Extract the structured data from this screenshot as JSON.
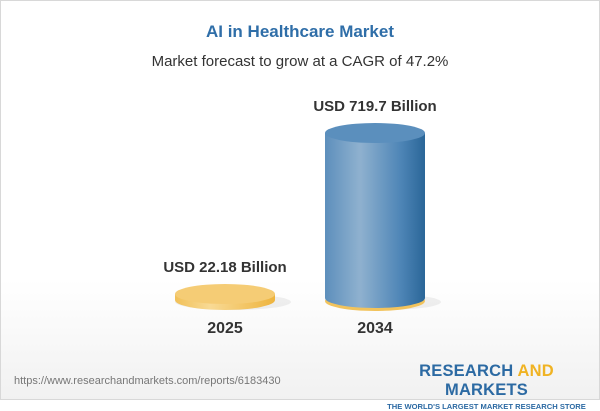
{
  "title": "AI in Healthcare Market",
  "subtitle": "Market forecast to grow at a CAGR of 47.2%",
  "chart_data": {
    "type": "bar",
    "style": "3d-cylinder",
    "categories": [
      "2025",
      "2034"
    ],
    "values": [
      22.18,
      719.7
    ],
    "data_labels": [
      "USD 22.18 Billion",
      "USD 719.7 Billion"
    ],
    "unit": "USD Billion",
    "colors": [
      "#f5c96a",
      "#4a86b8"
    ],
    "grid": false
  },
  "footer": {
    "url": "https://www.researchandmarkets.com/reports/6183430",
    "logo_part1": "RESEARCH ",
    "logo_part2": "AND",
    "logo_part3": " MARKETS",
    "tagline": "THE WORLD'S LARGEST MARKET RESEARCH STORE"
  }
}
